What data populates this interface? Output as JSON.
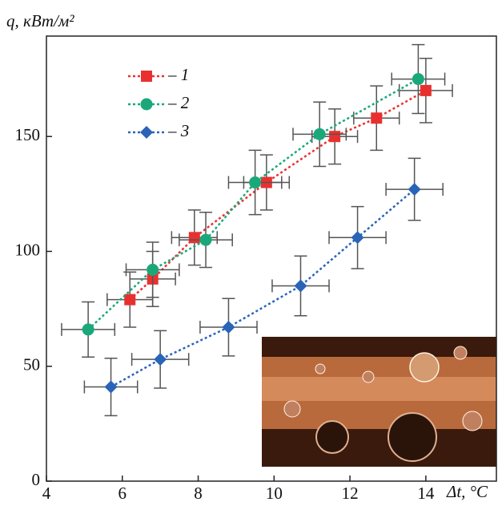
{
  "chart_data": {
    "type": "scatter",
    "y_label": "q, кВт/м²",
    "x_label": "Δt, °C",
    "xlim": [
      4,
      15.86
    ],
    "ylim": [
      0,
      193.7
    ],
    "xticks": [
      4,
      6,
      8,
      10,
      12,
      14
    ],
    "yticks": [
      0,
      50,
      100,
      150
    ],
    "series": [
      {
        "name": "– 1",
        "color": "#e8312f",
        "marker": "square",
        "x": [
          6.2,
          6.8,
          7.9,
          9.8,
          11.6,
          12.7,
          14.0
        ],
        "values": [
          79,
          88,
          106,
          130,
          150,
          158,
          170
        ],
        "xerr": [
          0.6,
          0.6,
          0.6,
          0.6,
          0.6,
          0.6,
          0.7
        ],
        "yerr": [
          12,
          12,
          12,
          12,
          12,
          14,
          14
        ]
      },
      {
        "name": "– 2",
        "color": "#1aa87a",
        "marker": "circle",
        "x": [
          5.1,
          6.8,
          8.2,
          9.5,
          11.2,
          13.8
        ],
        "values": [
          66,
          92,
          105,
          130,
          151,
          175
        ],
        "xerr": [
          0.7,
          0.7,
          0.7,
          0.7,
          0.7,
          0.7
        ],
        "yerr": [
          12,
          12,
          12,
          14,
          14,
          15
        ]
      },
      {
        "name": "– 3",
        "color": "#2a64b8",
        "marker": "diamond",
        "x": [
          5.7,
          7.0,
          8.8,
          10.7,
          12.2,
          13.7
        ],
        "values": [
          41,
          53,
          67,
          85,
          106,
          127
        ],
        "xerr": [
          0.7,
          0.75,
          0.75,
          0.75,
          0.75,
          0.75
        ],
        "yerr": [
          12.5,
          12.5,
          12.5,
          13,
          13.5,
          13.5
        ]
      }
    ]
  }
}
